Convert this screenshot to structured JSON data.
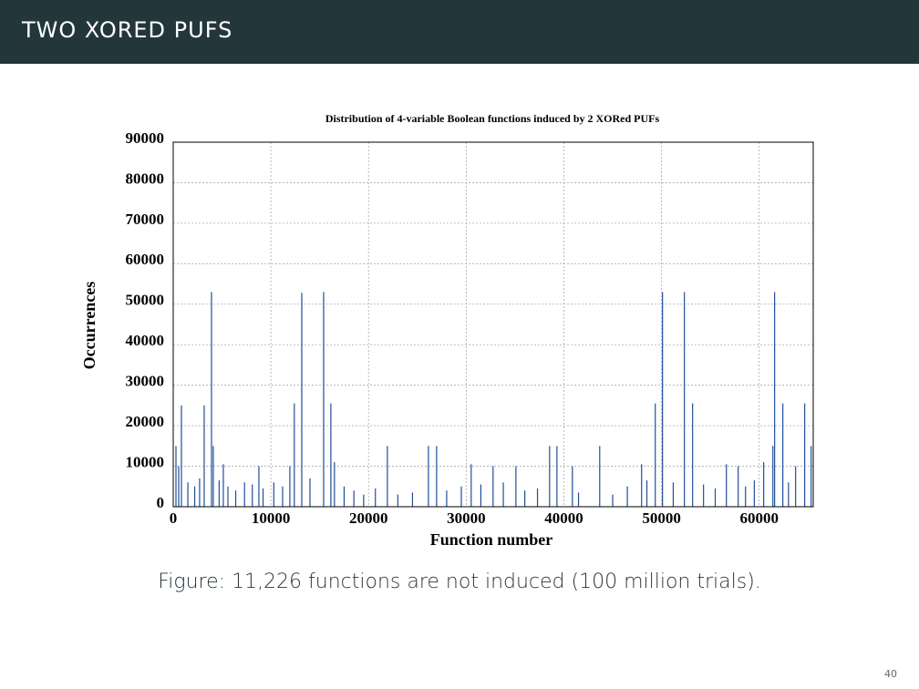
{
  "slide_title": "TWO XORED PUFS",
  "caption": {
    "label": "Figure:",
    "text": "11,226 functions are not induced (100 million trials)."
  },
  "page_number": "40",
  "chart_data": {
    "type": "bar",
    "title": "Distribution of 4-variable Boolean functions induced by 2 XORed PUFs",
    "x_label": "Function number",
    "y_label": "Occurrences",
    "color": "#1f4e9c",
    "grid": true,
    "xlim": [
      0,
      65535
    ],
    "ylim": [
      0,
      90000
    ],
    "xticks": [
      0,
      10000,
      20000,
      30000,
      40000,
      50000,
      60000
    ],
    "yticks": [
      0,
      10000,
      20000,
      30000,
      40000,
      50000,
      60000,
      70000,
      80000,
      90000
    ],
    "x": [
      840,
      3170,
      3920,
      4100,
      12400,
      13160,
      15400,
      16140,
      21930,
      26130,
      26970,
      38540,
      39290,
      43670,
      49360,
      50100,
      52340,
      53180,
      61580,
      62420,
      64660,
      280,
      61400,
      560,
      5130,
      8770,
      11940,
      16510,
      30510,
      32750,
      35090,
      40870,
      47960,
      56640,
      57850,
      60460,
      63730,
      65320,
      1500,
      2200,
      2700,
      4700,
      5600,
      6400,
      7300,
      8100,
      9200,
      10300,
      11200,
      14000,
      17500,
      18500,
      19500,
      20700,
      23000,
      24500,
      28000,
      29500,
      31500,
      33800,
      36000,
      37300,
      41500,
      45000,
      46500,
      48500,
      51200,
      54300,
      55500,
      58600,
      59500,
      63000
    ],
    "values": [
      25000,
      25000,
      53000,
      15000,
      25500,
      52800,
      53000,
      25500,
      15000,
      15000,
      15000,
      15000,
      15000,
      15000,
      25500,
      53000,
      53000,
      25500,
      53000,
      25500,
      25500,
      15000,
      15000,
      10000,
      10500,
      10000,
      10000,
      11000,
      10500,
      10000,
      10000,
      10000,
      10500,
      10500,
      10000,
      11000,
      10000,
      15000,
      6000,
      5000,
      7000,
      6500,
      5000,
      4000,
      6000,
      5500,
      4500,
      6000,
      5000,
      7000,
      5000,
      4000,
      3000,
      4500,
      3000,
      3500,
      4000,
      5000,
      5500,
      6000,
      4000,
      4500,
      3500,
      3000,
      5000,
      6500,
      6000,
      5500,
      4500,
      5000,
      6500,
      6000
    ]
  }
}
